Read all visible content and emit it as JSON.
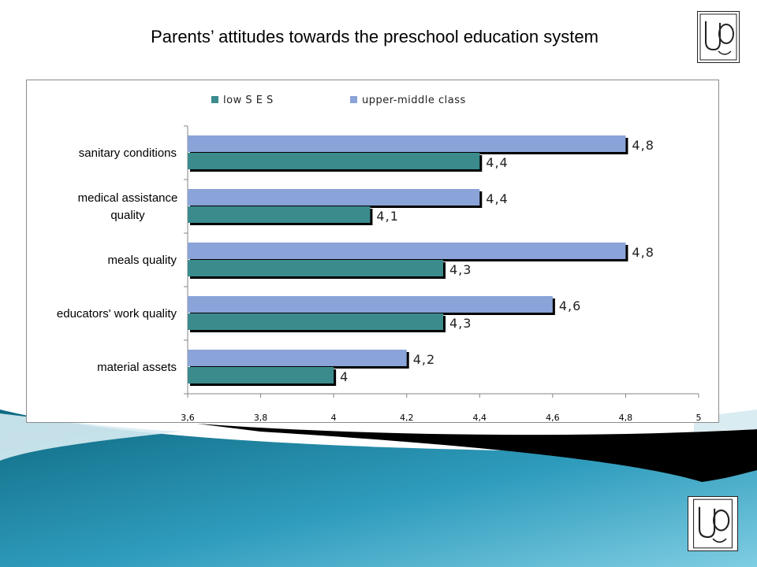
{
  "slide": {
    "title": "Parents’ attitudes towards the preschool education system",
    "logo_text": "UO",
    "colors": {
      "wave_dark": "#0f6a82",
      "wave_mid": "#2f9cbd",
      "wave_light": "#7fcde2",
      "band_black": "#000000"
    }
  },
  "chart_data": {
    "type": "bar",
    "orientation": "horizontal",
    "title": "",
    "xlabel": "",
    "ylabel": "",
    "categories": [
      "sanitary conditions",
      "medical assistance quality",
      "meals quality",
      "educators' work quality",
      "material assets"
    ],
    "series": [
      {
        "name": "low S E S",
        "color": "#3b8b8d",
        "values": [
          4.4,
          4.1,
          4.3,
          4.3,
          4.0
        ],
        "labels": [
          "4,4",
          "4,1",
          "4,3",
          "4,3",
          "4"
        ]
      },
      {
        "name": "upper-middle class",
        "color": "#8aa3d8",
        "values": [
          4.8,
          4.4,
          4.8,
          4.6,
          4.2
        ],
        "labels": [
          "4,8",
          "4,4",
          "4,8",
          "4,6",
          "4,2"
        ]
      }
    ],
    "xlim": [
      3.6,
      5.0
    ],
    "xticks": [
      3.6,
      3.8,
      4.0,
      4.2,
      4.4,
      4.6,
      4.8,
      5.0
    ],
    "xtick_labels": [
      "3,6",
      "3,8",
      "4",
      "4,2",
      "4,4",
      "4,6",
      "4,8",
      "5"
    ],
    "grid": false,
    "legend_position": "top"
  }
}
